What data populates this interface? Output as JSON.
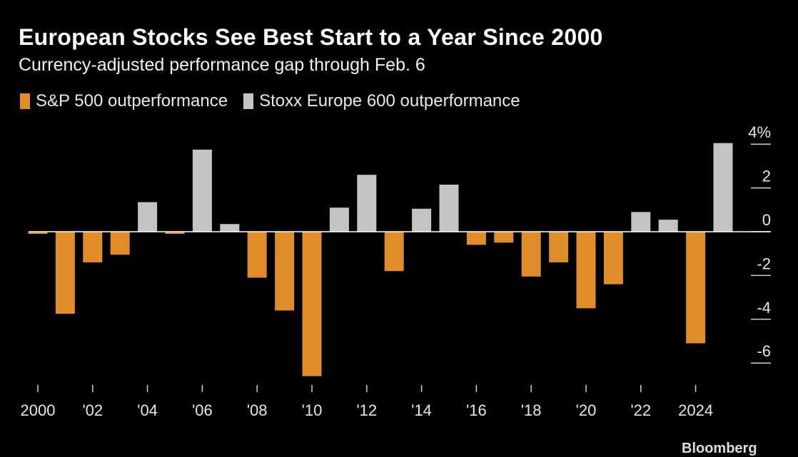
{
  "chart_data": {
    "type": "bar",
    "title": "European Stocks See Best Start to a Year Since 2000",
    "subtitle": "Currency-adjusted performance gap through Feb. 6",
    "xlabel": "",
    "ylabel": "",
    "ylim": [
      -7,
      4.5
    ],
    "y_ticks": [
      4,
      2,
      0,
      -2,
      -4,
      -6
    ],
    "y_tick_labels": [
      "4%",
      "2",
      "0",
      "-2",
      "-4",
      "-6"
    ],
    "x_ticks": [
      2000,
      2002,
      2004,
      2006,
      2008,
      2010,
      2012,
      2014,
      2016,
      2018,
      2020,
      2022,
      2024
    ],
    "x_tick_labels": [
      "2000",
      "'02",
      "'04",
      "'06",
      "'08",
      "'10",
      "'12",
      "'14",
      "'16",
      "'18",
      "'20",
      "'22",
      "2024"
    ],
    "legend": [
      {
        "name": "S&P 500 outperformance",
        "color": "#e08c27"
      },
      {
        "name": "Stoxx Europe 600 outperformance",
        "color": "#c4c4c4"
      }
    ],
    "colors": {
      "negative": "#e08c27",
      "positive": "#c4c4c4"
    },
    "categories": [
      2000,
      2001,
      2002,
      2003,
      2004,
      2005,
      2006,
      2007,
      2008,
      2009,
      2010,
      2011,
      2012,
      2013,
      2014,
      2015,
      2016,
      2017,
      2018,
      2019,
      2020,
      2021,
      2022,
      2023,
      2024,
      2025
    ],
    "values": [
      -0.1,
      -3.75,
      -1.4,
      -1.05,
      1.35,
      -0.1,
      3.75,
      0.35,
      -2.1,
      -3.6,
      -6.6,
      1.1,
      2.6,
      -1.8,
      1.05,
      2.15,
      -0.6,
      -0.5,
      -2.05,
      -1.4,
      -3.5,
      -2.4,
      0.9,
      0.55,
      -5.1,
      4.05
    ]
  },
  "footer": {
    "source": "Bloomberg"
  }
}
